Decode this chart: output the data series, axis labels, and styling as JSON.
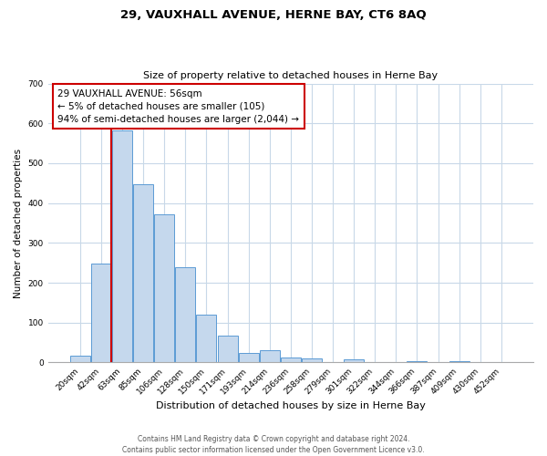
{
  "title": "29, VAUXHALL AVENUE, HERNE BAY, CT6 8AQ",
  "subtitle": "Size of property relative to detached houses in Herne Bay",
  "xlabel": "Distribution of detached houses by size in Herne Bay",
  "ylabel": "Number of detached properties",
  "bin_labels": [
    "20sqm",
    "42sqm",
    "63sqm",
    "85sqm",
    "106sqm",
    "128sqm",
    "150sqm",
    "171sqm",
    "193sqm",
    "214sqm",
    "236sqm",
    "258sqm",
    "279sqm",
    "301sqm",
    "322sqm",
    "344sqm",
    "366sqm",
    "387sqm",
    "409sqm",
    "430sqm",
    "452sqm"
  ],
  "bar_heights": [
    18,
    248,
    583,
    448,
    372,
    238,
    120,
    67,
    24,
    30,
    13,
    10,
    0,
    8,
    0,
    0,
    3,
    0,
    4,
    0,
    2
  ],
  "bar_color": "#c5d8ed",
  "bar_edge_color": "#5b9bd5",
  "vline_color": "#cc0000",
  "vline_pos": 2.0,
  "annotation_text": "29 VAUXHALL AVENUE: 56sqm\n← 5% of detached houses are smaller (105)\n94% of semi-detached houses are larger (2,044) →",
  "annotation_box_color": "#ffffff",
  "annotation_box_edge": "#cc0000",
  "ylim": [
    0,
    700
  ],
  "yticks": [
    0,
    100,
    200,
    300,
    400,
    500,
    600,
    700
  ],
  "footer_line1": "Contains HM Land Registry data © Crown copyright and database right 2024.",
  "footer_line2": "Contains public sector information licensed under the Open Government Licence v3.0.",
  "bg_color": "#ffffff",
  "grid_color": "#c8d8e8",
  "title_fontsize": 9.5,
  "subtitle_fontsize": 8,
  "ylabel_fontsize": 7.5,
  "xlabel_fontsize": 8,
  "tick_fontsize": 6.5,
  "annot_fontsize": 7.5,
  "footer_fontsize": 5.5
}
